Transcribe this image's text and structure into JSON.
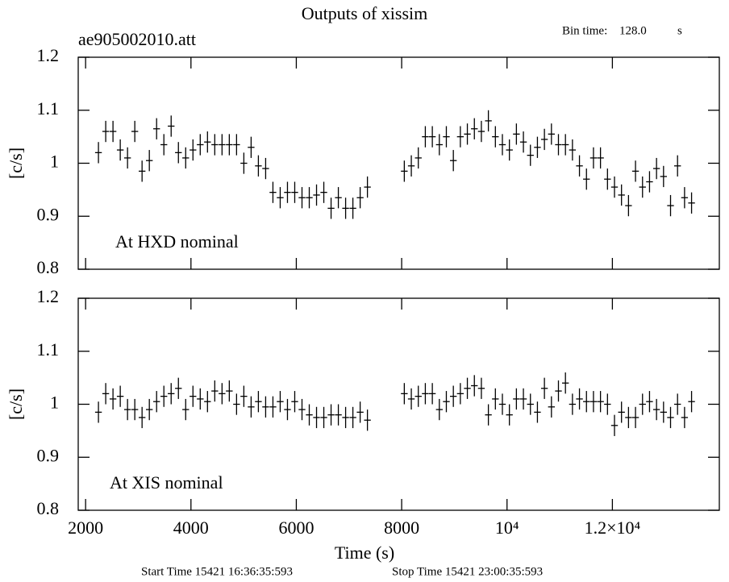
{
  "chart_data": [
    {
      "type": "scatter",
      "title": "Outputs of xissim",
      "subtitle": "ae905002010.att",
      "bin_time_label": "Bin time:",
      "bin_time": "128.0",
      "bin_time_unit": "s",
      "ylabel": "[c/s]",
      "annotation": "At HXD nominal",
      "color": "#000000",
      "xlim": [
        1860,
        14030
      ],
      "ylim": [
        0.8,
        1.2
      ],
      "yticks": [
        0.8,
        0.9,
        1,
        1.1,
        1.2
      ],
      "xerr": 64,
      "yerr": 0.02,
      "x": [
        2244,
        2382,
        2520,
        2658,
        2796,
        2934,
        3072,
        3210,
        3348,
        3486,
        3624,
        3762,
        3900,
        4038,
        4176,
        4314,
        4452,
        4590,
        4728,
        4866,
        5004,
        5142,
        5280,
        5418,
        5556,
        5694,
        5832,
        5970,
        6108,
        6246,
        6384,
        6522,
        6660,
        6798,
        6936,
        7074,
        7212,
        7350,
        8050,
        8183,
        8316,
        8449,
        8582,
        8715,
        8848,
        8981,
        9114,
        9247,
        9380,
        9513,
        9646,
        9779,
        9912,
        10045,
        10178,
        10311,
        10444,
        10577,
        10710,
        10843,
        10976,
        11109,
        11242,
        11375,
        11508,
        11641,
        11774,
        11907,
        12040,
        12173,
        12306,
        12439,
        12572,
        12705,
        12838,
        12971,
        13104,
        13237,
        13370,
        13503
      ],
      "series": [
        {
          "name": "HXD",
          "values": [
            1.02,
            1.06,
            1.06,
            1.025,
            1.01,
            1.06,
            0.985,
            1.005,
            1.065,
            1.035,
            1.07,
            1.02,
            1.01,
            1.025,
            1.035,
            1.04,
            1.035,
            1.035,
            1.035,
            1.035,
            1.0,
            1.03,
            0.995,
            0.99,
            0.945,
            0.935,
            0.945,
            0.945,
            0.935,
            0.935,
            0.94,
            0.945,
            0.915,
            0.935,
            0.915,
            0.915,
            0.935,
            0.955,
            0.985,
            0.995,
            1.01,
            1.05,
            1.05,
            1.035,
            1.05,
            1.005,
            1.05,
            1.055,
            1.065,
            1.06,
            1.08,
            1.05,
            1.035,
            1.025,
            1.055,
            1.04,
            1.015,
            1.03,
            1.045,
            1.055,
            1.035,
            1.035,
            1.025,
            0.995,
            0.97,
            1.01,
            1.01,
            0.97,
            0.955,
            0.94,
            0.92,
            0.985,
            0.955,
            0.965,
            0.99,
            0.975,
            0.92,
            0.995,
            0.935,
            0.925
          ]
        }
      ]
    },
    {
      "type": "scatter",
      "annotation": "At XIS nominal",
      "ylabel": "[c/s]",
      "color": "#000000",
      "xlabel": "Time (s)",
      "start_time": "Start Time 15421 16:36:35:593",
      "stop_time": "Stop Time 15421 23:00:35:593",
      "xlim": [
        1860,
        14030
      ],
      "ylim": [
        0.8,
        1.2
      ],
      "yticks": [
        0.8,
        0.9,
        1,
        1.1,
        1.2
      ],
      "xticks": [
        2000,
        4000,
        6000,
        8000,
        {
          "value": 10000,
          "label": "10⁴"
        },
        {
          "value": 12000,
          "label": "1.2×10⁴"
        }
      ],
      "xerr": 64,
      "yerr": 0.02,
      "x": [
        2244,
        2382,
        2520,
        2658,
        2796,
        2934,
        3072,
        3210,
        3348,
        3486,
        3624,
        3762,
        3900,
        4038,
        4176,
        4314,
        4452,
        4590,
        4728,
        4866,
        5004,
        5142,
        5280,
        5418,
        5556,
        5694,
        5832,
        5970,
        6108,
        6246,
        6384,
        6522,
        6660,
        6798,
        6936,
        7074,
        7212,
        7350,
        8050,
        8183,
        8316,
        8449,
        8582,
        8715,
        8848,
        8981,
        9114,
        9247,
        9380,
        9513,
        9646,
        9779,
        9912,
        10045,
        10178,
        10311,
        10444,
        10577,
        10710,
        10843,
        10976,
        11109,
        11242,
        11375,
        11508,
        11641,
        11774,
        11907,
        12040,
        12173,
        12306,
        12439,
        12572,
        12705,
        12838,
        12971,
        13104,
        13237,
        13370,
        13503
      ],
      "series": [
        {
          "name": "XIS",
          "values": [
            0.985,
            1.02,
            1.01,
            1.015,
            0.99,
            0.99,
            0.975,
            0.99,
            1.005,
            1.015,
            1.02,
            1.03,
            0.99,
            1.015,
            1.01,
            1.005,
            1.025,
            1.02,
            1.025,
            1.0,
            1.015,
            0.995,
            1.005,
            0.995,
            0.995,
            1.005,
            0.99,
            1.005,
            0.99,
            0.98,
            0.975,
            0.975,
            0.98,
            0.98,
            0.975,
            0.975,
            0.985,
            0.97,
            1.02,
            1.01,
            1.015,
            1.02,
            1.02,
            0.99,
            1.005,
            1.015,
            1.02,
            1.03,
            1.035,
            1.03,
            0.98,
            1.01,
            1.0,
            0.98,
            1.01,
            1.01,
            1.0,
            0.985,
            1.03,
            0.995,
            1.025,
            1.04,
            1.0,
            1.01,
            1.005,
            1.005,
            1.005,
            1.0,
            0.96,
            0.985,
            0.975,
            0.975,
            1.0,
            1.005,
            0.99,
            0.985,
            0.975,
            1.0,
            0.975,
            1.005
          ]
        }
      ]
    }
  ]
}
